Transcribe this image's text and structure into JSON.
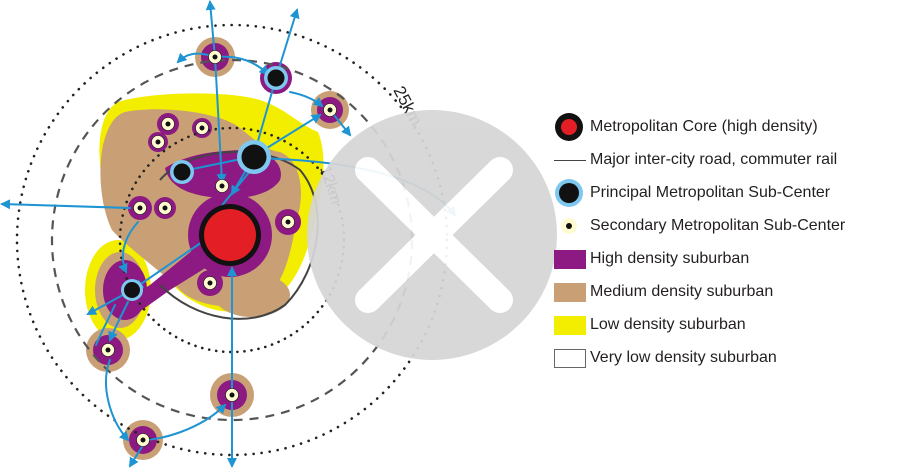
{
  "diagram": {
    "ring_labels": {
      "outer": "25km.",
      "inner": "12km"
    },
    "colors": {
      "high_density": "#8c1a82",
      "medium_density": "#c9a076",
      "low_density": "#f3ee00",
      "core": "#e31e24",
      "arrows": "#1e94d2",
      "sub_center_ring": "#7ec8ef"
    }
  },
  "legend": {
    "items": [
      {
        "label": "Metropolitan Core (high density)",
        "symbol": "core-icon"
      },
      {
        "label": "Major inter-city road, commuter rail",
        "symbol": "road-line-icon"
      },
      {
        "label": "Principal Metropolitan Sub-Center",
        "symbol": "principal-subcenter-icon"
      },
      {
        "label": "Secondary Metropolitan Sub-Center",
        "symbol": "secondary-subcenter-icon"
      },
      {
        "label": "High density suburban",
        "symbol": "swatch",
        "color": "#8c1a82"
      },
      {
        "label": "Medium density suburban",
        "symbol": "swatch",
        "color": "#c9a076"
      },
      {
        "label": "Low density suburban",
        "symbol": "swatch",
        "color": "#f3ee00"
      },
      {
        "label": "Very low density suburban",
        "symbol": "swatch",
        "color": "#ffffff"
      }
    ]
  },
  "watermark": {
    "icon": "close-x-icon"
  }
}
